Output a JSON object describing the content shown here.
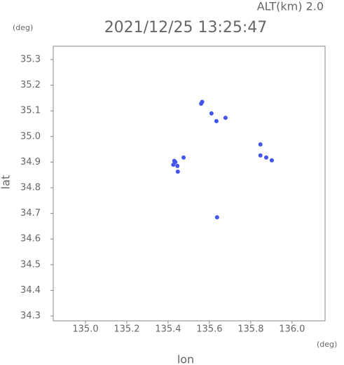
{
  "chart_data": {
    "type": "scatter",
    "title": "2021/12/25 13:25:47",
    "subtitle": "ALT(km) 2.0",
    "x_label": "lon",
    "y_label": "lat",
    "x_unit": "(deg)",
    "y_unit": "(deg)",
    "xlim": [
      134.844,
      136.16
    ],
    "ylim": [
      34.281,
      35.352
    ],
    "xticks": [
      {
        "value": 135.0,
        "label": "135.0"
      },
      135.2,
      135.4,
      135.6,
      135.8,
      {
        "value": 136.0,
        "label": "136.0"
      }
    ],
    "yticks": [
      34.3,
      34.4,
      34.5,
      34.6,
      34.7,
      34.8,
      34.9,
      {
        "value": 35.0,
        "label": "35.0"
      },
      35.1,
      35.2,
      35.3
    ],
    "series": [
      {
        "color": "#4455ee",
        "x": [
          135.56,
          135.565,
          135.61,
          135.634,
          135.678,
          135.425,
          135.435,
          135.445,
          135.43,
          135.475,
          135.447,
          135.847,
          135.847,
          135.875,
          135.902,
          135.637
        ],
        "values": [
          35.128,
          35.135,
          35.09,
          35.06,
          35.073,
          34.89,
          34.9,
          34.885,
          34.905,
          34.918,
          34.863,
          34.969,
          34.926,
          34.918,
          34.907,
          34.685
        ]
      }
    ]
  }
}
